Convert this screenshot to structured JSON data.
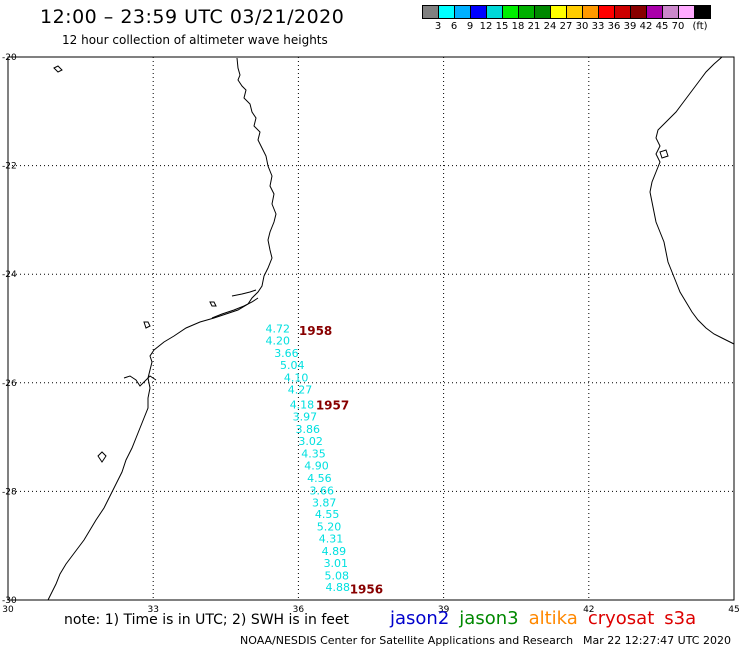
{
  "header": {
    "title": "12:00 – 23:59 UTC 03/21/2020",
    "subtitle": "12 hour collection of altimeter wave heights"
  },
  "color_scale": {
    "colors": [
      "#808080",
      "#00ffff",
      "#00b0ff",
      "#0000ff",
      "#00d8d8",
      "#00ee00",
      "#00b000",
      "#008800",
      "#ffff00",
      "#ffcc00",
      "#ff9900",
      "#ff0000",
      "#cc0000",
      "#880000",
      "#aa00aa",
      "#cc88cc",
      "#ffaaff",
      "#000000"
    ],
    "labels": [
      "3",
      "6",
      "9",
      "12",
      "15",
      "18",
      "21",
      "24",
      "27",
      "30",
      "33",
      "36",
      "39",
      "42",
      "45",
      "70",
      "(ft)"
    ]
  },
  "map": {
    "lat_labels": [
      "-20",
      "-22",
      "-24",
      "-26",
      "-28",
      "-30"
    ],
    "lon_labels": [
      "30",
      "33",
      "36",
      "39",
      "42",
      "45"
    ],
    "lat_values": [
      -20,
      -22,
      -24,
      -26,
      -28,
      -30
    ],
    "lon_values": [
      30,
      33,
      36,
      39,
      42,
      45
    ],
    "swh_color": "#00e0e0",
    "time_color": "#880000",
    "swh_readings": [
      {
        "v": "4.72",
        "lon": 35.32,
        "lat": -25.0
      },
      {
        "v": "4.20",
        "lon": 35.32,
        "lat": -25.22
      },
      {
        "v": "3.66",
        "lon": 35.5,
        "lat": -25.45
      },
      {
        "v": "5.04",
        "lon": 35.62,
        "lat": -25.67
      },
      {
        "v": "4.10",
        "lon": 35.7,
        "lat": -25.9
      },
      {
        "v": "4.27",
        "lon": 35.78,
        "lat": -26.12
      },
      {
        "v": "4.18",
        "lon": 35.82,
        "lat": -26.4
      },
      {
        "v": "3.97",
        "lon": 35.88,
        "lat": -26.62
      },
      {
        "v": "3.86",
        "lon": 35.94,
        "lat": -26.85
      },
      {
        "v": "3.02",
        "lon": 36.0,
        "lat": -27.07
      },
      {
        "v": "4.35",
        "lon": 36.06,
        "lat": -27.3
      },
      {
        "v": "4.90",
        "lon": 36.12,
        "lat": -27.52
      },
      {
        "v": "4.56",
        "lon": 36.18,
        "lat": -27.75
      },
      {
        "v": "3.66",
        "lon": 36.23,
        "lat": -27.98
      },
      {
        "v": "3.87",
        "lon": 36.28,
        "lat": -28.2
      },
      {
        "v": "4.55",
        "lon": 36.34,
        "lat": -28.42
      },
      {
        "v": "5.20",
        "lon": 36.38,
        "lat": -28.65
      },
      {
        "v": "4.31",
        "lon": 36.42,
        "lat": -28.87
      },
      {
        "v": "4.89",
        "lon": 36.48,
        "lat": -29.1
      },
      {
        "v": "3.01",
        "lon": 36.52,
        "lat": -29.32
      },
      {
        "v": "5.08",
        "lon": 36.54,
        "lat": -29.55
      },
      {
        "v": "4.88",
        "lon": 36.56,
        "lat": -29.76
      }
    ],
    "time_labels": [
      {
        "t": "1958",
        "lon": 36.01,
        "lat": -25.03
      },
      {
        "t": "1957",
        "lon": 36.36,
        "lat": -26.4
      },
      {
        "t": "1956",
        "lon": 37.06,
        "lat": -29.79
      }
    ]
  },
  "footer": {
    "note": "note: 1) Time is in UTC; 2) SWH is in feet",
    "satellites": [
      {
        "name": "jason2",
        "color": "#0000cc"
      },
      {
        "name": "jason3",
        "color": "#008800"
      },
      {
        "name": "altika",
        "color": "#ff8800"
      },
      {
        "name": "cryosat",
        "color": "#dd0000"
      },
      {
        "name": "s3a",
        "color": "#dd0000"
      }
    ],
    "credit": "NOAA/NESDIS Center for Satellite Applications and Research",
    "timestamp": "Mar 22 12:27:47 UTC 2020"
  }
}
